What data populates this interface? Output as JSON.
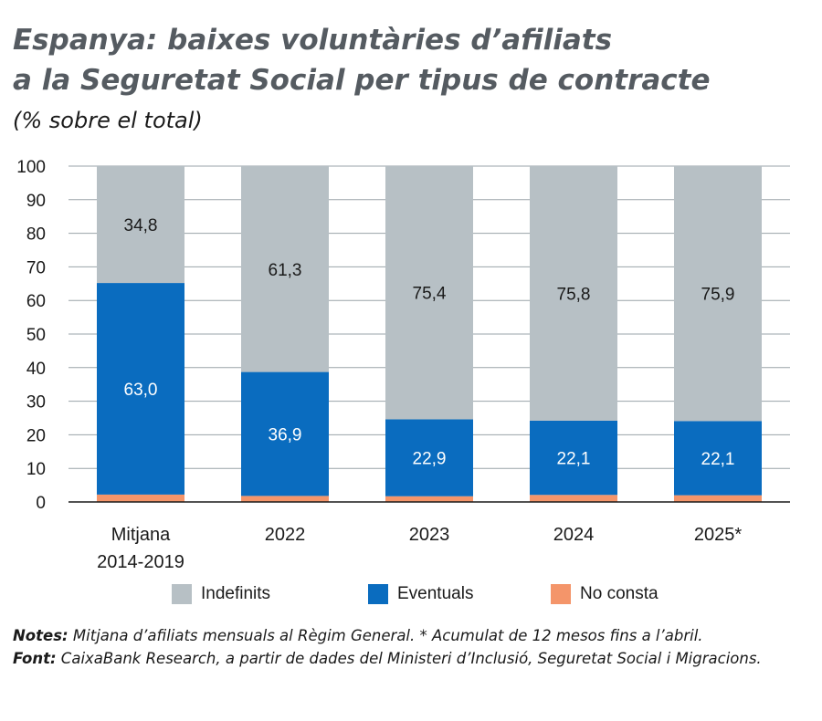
{
  "title_line1": "Espanya: baixes voluntàries d’afiliats",
  "title_line2": "a la Seguretat Social per tipus de contracte",
  "subtitle": "(% sobre el total)",
  "chart_data": {
    "type": "bar",
    "stacked": true,
    "categories": [
      "Mitjana\n2014-2019",
      "2022",
      "2023",
      "2024",
      "2025*"
    ],
    "series": [
      {
        "name": "No consta",
        "color": "#f4956a",
        "values": [
          2.2,
          1.8,
          1.7,
          2.1,
          2.0
        ],
        "labels": [
          "",
          "",
          "",
          "",
          ""
        ]
      },
      {
        "name": "Eventuals",
        "color": "#0a6cbf",
        "values": [
          63.0,
          36.9,
          22.9,
          22.1,
          22.1
        ],
        "labels": [
          "63,0",
          "36,9",
          "22,9",
          "22,1",
          "22,1"
        ]
      },
      {
        "name": "Indefinits",
        "color": "#b7c0c5",
        "values": [
          34.8,
          61.3,
          75.4,
          75.8,
          75.9
        ],
        "labels": [
          "34,8",
          "61,3",
          "75,4",
          "75,8",
          "75,9"
        ]
      }
    ],
    "ylim": [
      0,
      100
    ],
    "yticks": [
      0,
      10,
      20,
      30,
      40,
      50,
      60,
      70,
      80,
      90,
      100
    ],
    "grid": true,
    "title": "Espanya: baixes voluntàries d’afiliats a la Seguretat Social per tipus de contracte",
    "ylabel": "(% sobre el total)",
    "xlabel": ""
  },
  "legend": [
    {
      "label": "Indefinits",
      "color": "#b7c0c5"
    },
    {
      "label": "Eventuals",
      "color": "#0a6cbf"
    },
    {
      "label": "No consta",
      "color": "#f4956a"
    }
  ],
  "notes": {
    "notes_label": "Notes:",
    "notes_text": " Mitjana d’afiliats mensuals al Règim General. * Acumulat de 12 mesos fins a l’abril.",
    "source_label": "Font:",
    "source_text": " CaixaBank Research, a partir de dades del Ministeri d’Inclusió, Seguretat Social i Migracions."
  }
}
